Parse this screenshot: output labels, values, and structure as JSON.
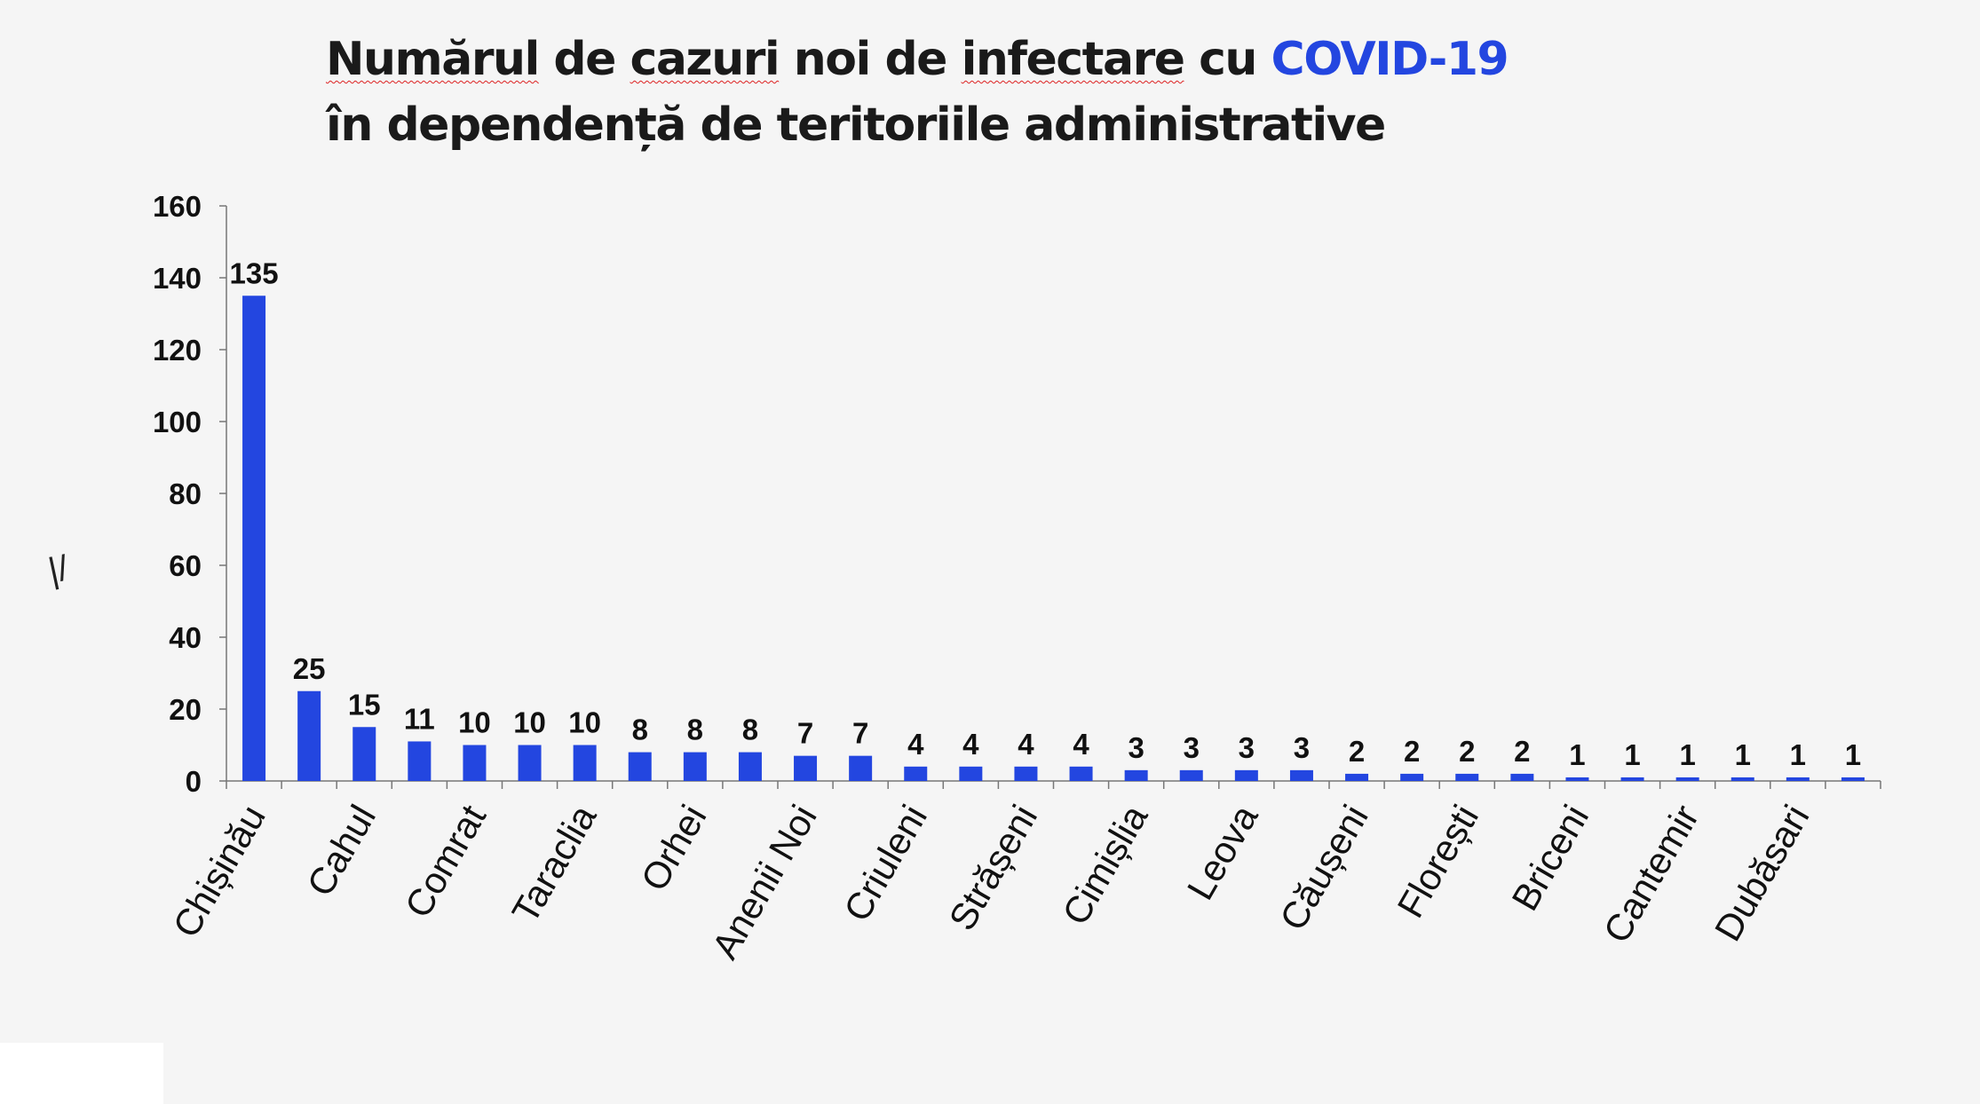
{
  "title": {
    "line1_parts": [
      "Numărul",
      " de ",
      "cazuri",
      " noi de ",
      "infectare",
      " cu "
    ],
    "line1_highlight": "COVID-19",
    "line2": "în dependență de teritoriile administrative"
  },
  "colors": {
    "bar": "#2346e0",
    "highlight": "#2346e0",
    "background": "#f5f5f5"
  },
  "chart_data": {
    "type": "bar",
    "title": "Numărul de cazuri noi de infectare cu COVID-19 în dependență de teritoriile administrative",
    "ylabel": "",
    "ylim": [
      0,
      160
    ],
    "yticks": [
      0,
      20,
      40,
      60,
      80,
      100,
      120,
      140,
      160
    ],
    "categories": [
      "Chișinău",
      "",
      "Cahul",
      "",
      "Comrat",
      "",
      "Taraclia",
      "",
      "Orhei",
      "",
      "Anenii Noi",
      "",
      "Criuleni",
      "",
      "Strășeni",
      "",
      "Cimișlia",
      "",
      "Leova",
      "",
      "Căușeni",
      "",
      "Florești",
      "",
      "Briceni",
      "",
      "Cantemir",
      "",
      "Dubăsari",
      ""
    ],
    "values": [
      135,
      25,
      15,
      11,
      10,
      10,
      10,
      8,
      8,
      8,
      7,
      7,
      4,
      4,
      4,
      4,
      3,
      3,
      3,
      3,
      2,
      2,
      2,
      2,
      1,
      1,
      1,
      1,
      1,
      1
    ],
    "data_labels": [
      "135",
      "25",
      "15",
      "11",
      "10",
      "10",
      "10",
      "8",
      "8",
      "8",
      "7",
      "7",
      "4",
      "4",
      "4",
      "4",
      "3",
      "3",
      "3",
      "3",
      "2",
      "2",
      "2",
      "2",
      "1",
      "1",
      "1",
      "1",
      "1",
      "1"
    ],
    "grid": false,
    "legend": "none"
  },
  "ylabel_glyph": "|/"
}
